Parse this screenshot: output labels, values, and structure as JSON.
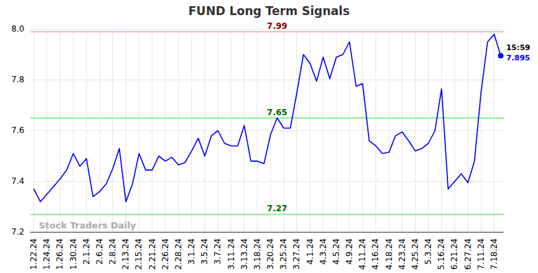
{
  "chart_data": {
    "type": "line",
    "title": "FUND Long Term Signals",
    "watermark": "Stock Traders Daily",
    "categories": [
      "1.22.24",
      null,
      "1.24.24",
      null,
      "1.26.24",
      null,
      "1.30.24",
      null,
      "2.1.24",
      null,
      "2.6.24",
      null,
      "2.8.24",
      null,
      "2.13.24",
      null,
      "2.15.24",
      null,
      "2.21.24",
      null,
      "2.26.24",
      null,
      "2.28.24",
      null,
      "3.1.24",
      null,
      "3.5.24",
      null,
      "3.7.24",
      null,
      "3.11.24",
      null,
      "3.13.24",
      null,
      "3.18.24",
      null,
      "3.20.24",
      null,
      "3.25.24",
      null,
      "3.27.24",
      null,
      "4.1.24",
      null,
      "4.3.24",
      null,
      "4.5.24",
      null,
      "4.9.24",
      null,
      "4.11.24",
      null,
      "4.16.24",
      null,
      "4.18.24",
      null,
      "4.23.24",
      null,
      "4.25.24",
      null,
      "5.3.24",
      null,
      "5.16.24",
      null,
      "6.21.24",
      null,
      "6.27.24",
      null,
      "7.11.24",
      null,
      "7.18.24",
      null
    ],
    "values": [
      7.37,
      7.32,
      7.35,
      7.38,
      7.41,
      7.445,
      7.51,
      7.46,
      7.49,
      7.34,
      7.36,
      7.39,
      7.45,
      7.53,
      7.32,
      7.39,
      7.51,
      7.445,
      7.445,
      7.5,
      7.48,
      7.495,
      7.465,
      7.475,
      7.52,
      7.57,
      7.5,
      7.58,
      7.6,
      7.55,
      7.54,
      7.54,
      7.62,
      7.48,
      7.48,
      7.47,
      7.585,
      7.65,
      7.61,
      7.61,
      7.75,
      7.9,
      7.865,
      7.795,
      7.89,
      7.805,
      7.89,
      7.9,
      7.95,
      7.775,
      7.785,
      7.56,
      7.54,
      7.51,
      7.515,
      7.58,
      7.595,
      7.56,
      7.52,
      7.53,
      7.55,
      7.6,
      7.765,
      7.37,
      7.4,
      7.43,
      7.395,
      7.48,
      7.75,
      7.95,
      7.98,
      7.895
    ],
    "color": "#0000ff",
    "last_label": "15:59",
    "reference_lines": [
      {
        "value": 7.99,
        "label": "7.99",
        "color": "#ffb6c1",
        "label_color": "#8b0000"
      },
      {
        "value": 7.65,
        "label": "7.65",
        "color": "#90ee90",
        "label_color": "#006400"
      },
      {
        "value": 7.27,
        "label": "7.27",
        "color": "#90ee90",
        "label_color": "#006400"
      }
    ],
    "ylim": [
      7.2,
      8.0
    ],
    "yticks": [
      7.2,
      7.4,
      7.6,
      7.8,
      8
    ],
    "grid": true
  }
}
